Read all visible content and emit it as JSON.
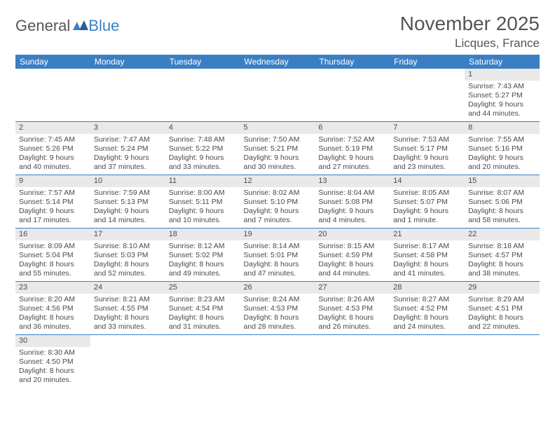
{
  "logo": {
    "text1": "General",
    "text2": "Blue"
  },
  "title": "November 2025",
  "location": "Licques, France",
  "colors": {
    "header_bg": "#3a7fc4",
    "header_text": "#ffffff",
    "daynum_bg": "#e9e9e9",
    "rule": "#3a7fc4",
    "body_text": "#4a4a4a",
    "page_bg": "#ffffff"
  },
  "fonts": {
    "title_size": 28,
    "location_size": 17,
    "header_size": 12,
    "body_size": 10.5
  },
  "weekdays": [
    "Sunday",
    "Monday",
    "Tuesday",
    "Wednesday",
    "Thursday",
    "Friday",
    "Saturday"
  ],
  "weeks": [
    [
      {
        "n": "",
        "sunrise": "",
        "sunset": "",
        "day1": "",
        "day2": ""
      },
      {
        "n": "",
        "sunrise": "",
        "sunset": "",
        "day1": "",
        "day2": ""
      },
      {
        "n": "",
        "sunrise": "",
        "sunset": "",
        "day1": "",
        "day2": ""
      },
      {
        "n": "",
        "sunrise": "",
        "sunset": "",
        "day1": "",
        "day2": ""
      },
      {
        "n": "",
        "sunrise": "",
        "sunset": "",
        "day1": "",
        "day2": ""
      },
      {
        "n": "",
        "sunrise": "",
        "sunset": "",
        "day1": "",
        "day2": ""
      },
      {
        "n": "1",
        "sunrise": "Sunrise: 7:43 AM",
        "sunset": "Sunset: 5:27 PM",
        "day1": "Daylight: 9 hours",
        "day2": "and 44 minutes."
      }
    ],
    [
      {
        "n": "2",
        "sunrise": "Sunrise: 7:45 AM",
        "sunset": "Sunset: 5:26 PM",
        "day1": "Daylight: 9 hours",
        "day2": "and 40 minutes."
      },
      {
        "n": "3",
        "sunrise": "Sunrise: 7:47 AM",
        "sunset": "Sunset: 5:24 PM",
        "day1": "Daylight: 9 hours",
        "day2": "and 37 minutes."
      },
      {
        "n": "4",
        "sunrise": "Sunrise: 7:48 AM",
        "sunset": "Sunset: 5:22 PM",
        "day1": "Daylight: 9 hours",
        "day2": "and 33 minutes."
      },
      {
        "n": "5",
        "sunrise": "Sunrise: 7:50 AM",
        "sunset": "Sunset: 5:21 PM",
        "day1": "Daylight: 9 hours",
        "day2": "and 30 minutes."
      },
      {
        "n": "6",
        "sunrise": "Sunrise: 7:52 AM",
        "sunset": "Sunset: 5:19 PM",
        "day1": "Daylight: 9 hours",
        "day2": "and 27 minutes."
      },
      {
        "n": "7",
        "sunrise": "Sunrise: 7:53 AM",
        "sunset": "Sunset: 5:17 PM",
        "day1": "Daylight: 9 hours",
        "day2": "and 23 minutes."
      },
      {
        "n": "8",
        "sunrise": "Sunrise: 7:55 AM",
        "sunset": "Sunset: 5:16 PM",
        "day1": "Daylight: 9 hours",
        "day2": "and 20 minutes."
      }
    ],
    [
      {
        "n": "9",
        "sunrise": "Sunrise: 7:57 AM",
        "sunset": "Sunset: 5:14 PM",
        "day1": "Daylight: 9 hours",
        "day2": "and 17 minutes."
      },
      {
        "n": "10",
        "sunrise": "Sunrise: 7:59 AM",
        "sunset": "Sunset: 5:13 PM",
        "day1": "Daylight: 9 hours",
        "day2": "and 14 minutes."
      },
      {
        "n": "11",
        "sunrise": "Sunrise: 8:00 AM",
        "sunset": "Sunset: 5:11 PM",
        "day1": "Daylight: 9 hours",
        "day2": "and 10 minutes."
      },
      {
        "n": "12",
        "sunrise": "Sunrise: 8:02 AM",
        "sunset": "Sunset: 5:10 PM",
        "day1": "Daylight: 9 hours",
        "day2": "and 7 minutes."
      },
      {
        "n": "13",
        "sunrise": "Sunrise: 8:04 AM",
        "sunset": "Sunset: 5:08 PM",
        "day1": "Daylight: 9 hours",
        "day2": "and 4 minutes."
      },
      {
        "n": "14",
        "sunrise": "Sunrise: 8:05 AM",
        "sunset": "Sunset: 5:07 PM",
        "day1": "Daylight: 9 hours",
        "day2": "and 1 minute."
      },
      {
        "n": "15",
        "sunrise": "Sunrise: 8:07 AM",
        "sunset": "Sunset: 5:06 PM",
        "day1": "Daylight: 8 hours",
        "day2": "and 58 minutes."
      }
    ],
    [
      {
        "n": "16",
        "sunrise": "Sunrise: 8:09 AM",
        "sunset": "Sunset: 5:04 PM",
        "day1": "Daylight: 8 hours",
        "day2": "and 55 minutes."
      },
      {
        "n": "17",
        "sunrise": "Sunrise: 8:10 AM",
        "sunset": "Sunset: 5:03 PM",
        "day1": "Daylight: 8 hours",
        "day2": "and 52 minutes."
      },
      {
        "n": "18",
        "sunrise": "Sunrise: 8:12 AM",
        "sunset": "Sunset: 5:02 PM",
        "day1": "Daylight: 8 hours",
        "day2": "and 49 minutes."
      },
      {
        "n": "19",
        "sunrise": "Sunrise: 8:14 AM",
        "sunset": "Sunset: 5:01 PM",
        "day1": "Daylight: 8 hours",
        "day2": "and 47 minutes."
      },
      {
        "n": "20",
        "sunrise": "Sunrise: 8:15 AM",
        "sunset": "Sunset: 4:59 PM",
        "day1": "Daylight: 8 hours",
        "day2": "and 44 minutes."
      },
      {
        "n": "21",
        "sunrise": "Sunrise: 8:17 AM",
        "sunset": "Sunset: 4:58 PM",
        "day1": "Daylight: 8 hours",
        "day2": "and 41 minutes."
      },
      {
        "n": "22",
        "sunrise": "Sunrise: 8:18 AM",
        "sunset": "Sunset: 4:57 PM",
        "day1": "Daylight: 8 hours",
        "day2": "and 38 minutes."
      }
    ],
    [
      {
        "n": "23",
        "sunrise": "Sunrise: 8:20 AM",
        "sunset": "Sunset: 4:56 PM",
        "day1": "Daylight: 8 hours",
        "day2": "and 36 minutes."
      },
      {
        "n": "24",
        "sunrise": "Sunrise: 8:21 AM",
        "sunset": "Sunset: 4:55 PM",
        "day1": "Daylight: 8 hours",
        "day2": "and 33 minutes."
      },
      {
        "n": "25",
        "sunrise": "Sunrise: 8:23 AM",
        "sunset": "Sunset: 4:54 PM",
        "day1": "Daylight: 8 hours",
        "day2": "and 31 minutes."
      },
      {
        "n": "26",
        "sunrise": "Sunrise: 8:24 AM",
        "sunset": "Sunset: 4:53 PM",
        "day1": "Daylight: 8 hours",
        "day2": "and 28 minutes."
      },
      {
        "n": "27",
        "sunrise": "Sunrise: 8:26 AM",
        "sunset": "Sunset: 4:53 PM",
        "day1": "Daylight: 8 hours",
        "day2": "and 26 minutes."
      },
      {
        "n": "28",
        "sunrise": "Sunrise: 8:27 AM",
        "sunset": "Sunset: 4:52 PM",
        "day1": "Daylight: 8 hours",
        "day2": "and 24 minutes."
      },
      {
        "n": "29",
        "sunrise": "Sunrise: 8:29 AM",
        "sunset": "Sunset: 4:51 PM",
        "day1": "Daylight: 8 hours",
        "day2": "and 22 minutes."
      }
    ],
    [
      {
        "n": "30",
        "sunrise": "Sunrise: 8:30 AM",
        "sunset": "Sunset: 4:50 PM",
        "day1": "Daylight: 8 hours",
        "day2": "and 20 minutes."
      },
      {
        "n": "",
        "sunrise": "",
        "sunset": "",
        "day1": "",
        "day2": ""
      },
      {
        "n": "",
        "sunrise": "",
        "sunset": "",
        "day1": "",
        "day2": ""
      },
      {
        "n": "",
        "sunrise": "",
        "sunset": "",
        "day1": "",
        "day2": ""
      },
      {
        "n": "",
        "sunrise": "",
        "sunset": "",
        "day1": "",
        "day2": ""
      },
      {
        "n": "",
        "sunrise": "",
        "sunset": "",
        "day1": "",
        "day2": ""
      },
      {
        "n": "",
        "sunrise": "",
        "sunset": "",
        "day1": "",
        "day2": ""
      }
    ]
  ]
}
